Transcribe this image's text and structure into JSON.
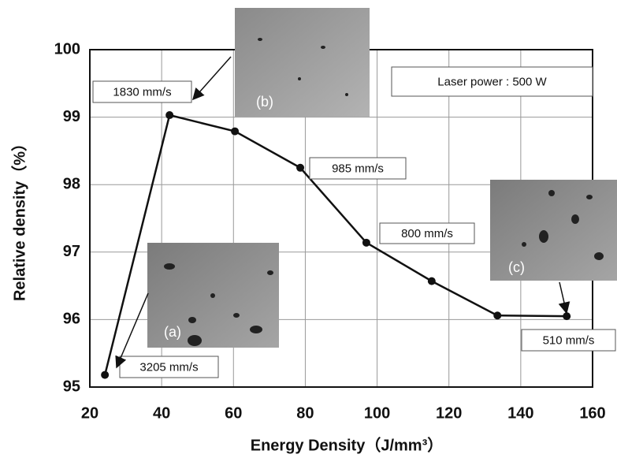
{
  "chart_data": {
    "type": "line",
    "x_label": "Energy Density（J/mm³）",
    "y_label": "Relative density（%）",
    "series": [
      {
        "color": "#111111",
        "x": [
          24.2,
          42.2,
          60.4,
          78.6,
          97.0,
          115.2,
          133.5,
          152.8
        ],
        "values": [
          95.18,
          99.03,
          98.79,
          98.25,
          97.14,
          96.57,
          96.06,
          96.05
        ]
      }
    ],
    "xlim": [
      20,
      160
    ],
    "xticks": [
      20,
      40,
      60,
      80,
      100,
      120,
      140,
      160
    ],
    "ylim": [
      95,
      100
    ],
    "yticks": [
      95,
      96,
      97,
      98,
      99,
      100
    ],
    "grid": true,
    "annotations": [
      "1830 mm/s",
      "985 mm/s",
      "800 mm/s",
      "3205 mm/s",
      "510 mm/s",
      "Laser power : 500 W"
    ],
    "insets": [
      "(a)",
      "(b)",
      "(c)"
    ]
  }
}
